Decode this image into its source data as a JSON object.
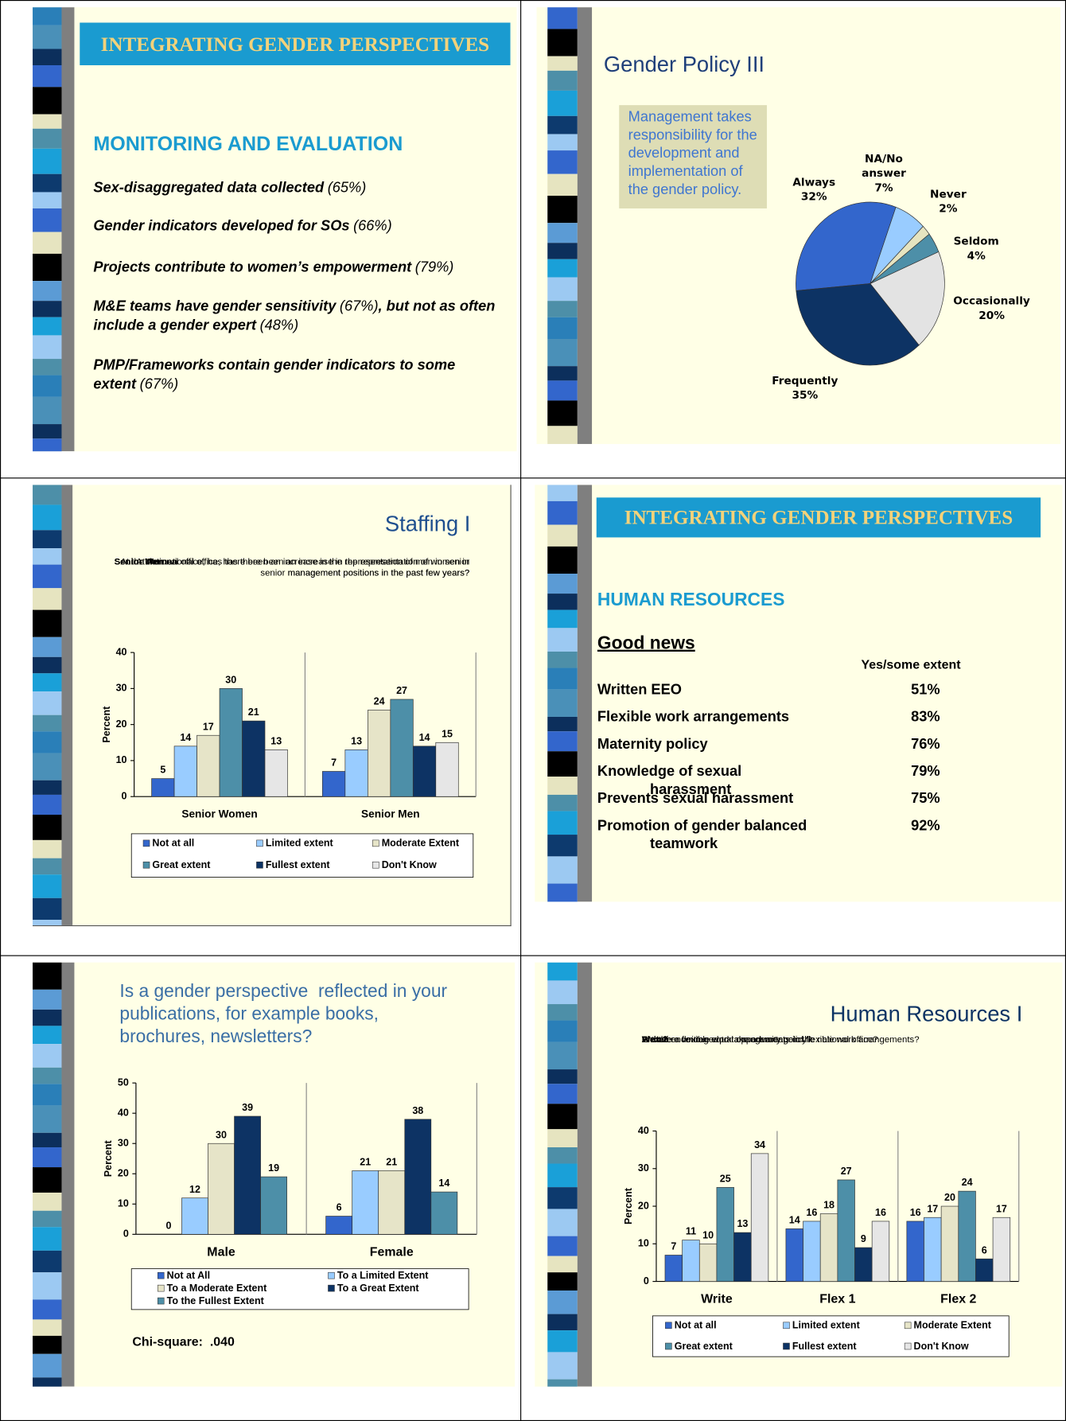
{
  "slides": [
    {
      "title": "INTEGRATING GENDER PERSPECTIVES",
      "heading": "MONITORING AND EVALUATION",
      "items": [
        {
          "parts": [
            "Sex-disaggregated data collected",
            "(65%)"
          ]
        },
        {
          "parts": [
            "Gender indicators developed for SOs",
            "(66%)"
          ]
        },
        {
          "parts": [
            "Projects contribute to women’s empowerment",
            "(79%)"
          ]
        },
        {
          "parts": [
            "M&E teams have gender sensitivity",
            "(67%)",
            ", but not as often include a gender expert",
            "(48%)"
          ]
        },
        {
          "parts": [
            "PMP/Frameworks contain gender indicators to some extent",
            "(67%)"
          ]
        }
      ]
    },
    {
      "title": "Gender Policy III",
      "note": "Management takes responsibility for the development and implementation of the gender policy.",
      "chart": {
        "type": "pie",
        "categories": [
          "Always",
          "NA/No answer",
          "Never",
          "Seldom",
          "Occasionally",
          "Frequently"
        ],
        "values": [
          32,
          7,
          2,
          4,
          20,
          35
        ],
        "value_labels": [
          "32%",
          "7%",
          "2%",
          "4%",
          "20%",
          "35%"
        ],
        "colors": [
          "#3366cc",
          "#99ccff",
          "#e6e4c0",
          "#4d8fa8",
          "#e3e3e3",
          "#0d3364"
        ]
      }
    },
    {
      "title": "Staffing I",
      "questions": [
        {
          "name": "Senior Women",
          "text": "At the national office, has there been an increase in the representation of women in senior management positions in the past few years?"
        },
        {
          "name": "Senior Men",
          "text": "At the national office, has there been an increase in the representation of men in senior management positions in the past few years?"
        }
      ],
      "chart": {
        "type": "bar",
        "y_label": "Percent",
        "categories": [
          "Senior Women",
          "Senior Men"
        ],
        "ylim": [
          0,
          40
        ],
        "yticks": [
          0,
          10,
          20,
          30,
          40
        ],
        "series": [
          {
            "name": "Not at all",
            "color": "#3366cc",
            "values": [
              5,
              7
            ]
          },
          {
            "name": "Limited extent",
            "color": "#99ccff",
            "values": [
              14,
              13
            ]
          },
          {
            "name": "Moderate Extent",
            "color": "#e6e4c8",
            "values": [
              17,
              24
            ]
          },
          {
            "name": "Great extent",
            "color": "#4d8fa8",
            "values": [
              30,
              27
            ]
          },
          {
            "name": "Fullest extent",
            "color": "#0d3364",
            "values": [
              21,
              14
            ]
          },
          {
            "name": "Don't Know",
            "color": "#e6e6e6",
            "values": [
              13,
              15
            ]
          }
        ]
      }
    },
    {
      "title": "INTEGRATING GENDER PERSPECTIVES",
      "heading": "HUMAN RESOURCES",
      "subheading": "Good news",
      "column": "Yes/some extent",
      "rows": [
        [
          "Written EEO",
          "51%"
        ],
        [
          "Flexible work arrangements",
          "83%"
        ],
        [
          "Maternity policy",
          "76%"
        ],
        [
          "Knowledge of sexual harassment",
          "79%"
        ],
        [
          "Prevents sexual harassment",
          "75%"
        ],
        [
          "Promotion of gender balanced teamwork",
          "92%"
        ]
      ]
    },
    {
      "question": "Is a gender perspective  reflected in your publications, for example books, brochures, newsletters?",
      "chart": {
        "type": "bar",
        "y_label": "Percent",
        "categories": [
          "Male",
          "Female"
        ],
        "ylim": [
          0,
          50
        ],
        "yticks": [
          0,
          10,
          20,
          30,
          40,
          50
        ],
        "series": [
          {
            "name": "Not at All",
            "color": "#3366cc",
            "values": [
              0,
              6
            ]
          },
          {
            "name": "To a Limited Extent",
            "color": "#99ccff",
            "values": [
              12,
              21
            ]
          },
          {
            "name": "To a Moderate Extent",
            "color": "#e6e4c8",
            "values": [
              30,
              21
            ]
          },
          {
            "name": "To a Great Extent",
            "color": "#0d3364",
            "values": [
              39,
              38
            ]
          },
          {
            "name": "To the Fullest Extent",
            "color": "#4d8fa8",
            "values": [
              19,
              14
            ]
          }
        ]
      },
      "note": "Chi-square:  .040"
    },
    {
      "title": "Human Resources I",
      "questions": [
        {
          "name": "Write",
          "text": "Is there a written equal opportunity policy?"
        },
        {
          "name": "Flex 1",
          "text": "Are there flexible work arrangements in the national office?"
        },
        {
          "name": "Flex 2",
          "text": "Is staff encouraged to take advantage of flexible work arrangements?"
        }
      ],
      "chart": {
        "type": "bar",
        "y_label": "Percent",
        "categories": [
          "Write",
          "Flex 1",
          "Flex 2"
        ],
        "ylim": [
          0,
          40
        ],
        "yticks": [
          0,
          10,
          20,
          30,
          40
        ],
        "series": [
          {
            "name": "Not at all",
            "color": "#3366cc",
            "values": [
              7,
              14,
              16
            ]
          },
          {
            "name": "Limited extent",
            "color": "#99ccff",
            "values": [
              11,
              16,
              17
            ]
          },
          {
            "name": "Moderate Extent",
            "color": "#e6e4c8",
            "values": [
              10,
              18,
              20
            ]
          },
          {
            "name": "Great extent",
            "color": "#4d8fa8",
            "values": [
              25,
              27,
              24
            ]
          },
          {
            "name": "Fullest extent",
            "color": "#0d3364",
            "values": [
              13,
              9,
              6
            ]
          },
          {
            "name": "Don't Know",
            "color": "#e6e6e6",
            "values": [
              34,
              16,
              17
            ]
          }
        ]
      }
    }
  ]
}
